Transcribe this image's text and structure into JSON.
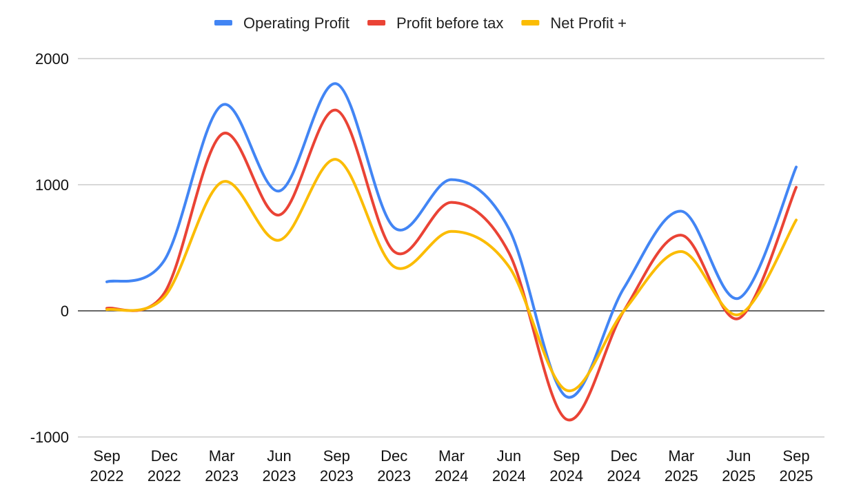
{
  "chart_data": {
    "type": "line",
    "title": "",
    "xlabel": "",
    "ylabel": "",
    "ylim": [
      -1000,
      2000
    ],
    "y_ticks": [
      -1000,
      0,
      1000,
      2000
    ],
    "grid": true,
    "smooth": true,
    "legend_position": "top",
    "categories": [
      [
        "Sep",
        "2022"
      ],
      [
        "Dec",
        "2022"
      ],
      [
        "Mar",
        "2023"
      ],
      [
        "Jun",
        "2023"
      ],
      [
        "Sep",
        "2023"
      ],
      [
        "Dec",
        "2023"
      ],
      [
        "Mar",
        "2024"
      ],
      [
        "Jun",
        "2024"
      ],
      [
        "Sep",
        "2024"
      ],
      [
        "Dec",
        "2024"
      ],
      [
        "Mar",
        "2025"
      ],
      [
        "Jun",
        "2025"
      ],
      [
        "Sep",
        "2025"
      ]
    ],
    "series": [
      {
        "name": "Operating Profit",
        "color": "#4285F4",
        "values": [
          230,
          400,
          1630,
          950,
          1800,
          660,
          1040,
          650,
          -680,
          180,
          790,
          100,
          1140
        ]
      },
      {
        "name": "Profit before tax",
        "color": "#EA4335",
        "values": [
          20,
          140,
          1400,
          760,
          1590,
          470,
          860,
          460,
          -860,
          0,
          600,
          -60,
          980
        ]
      },
      {
        "name": "Net Profit +",
        "color": "#FBBC04",
        "values": [
          10,
          110,
          1020,
          560,
          1200,
          350,
          630,
          350,
          -630,
          0,
          470,
          -30,
          720
        ]
      }
    ]
  }
}
